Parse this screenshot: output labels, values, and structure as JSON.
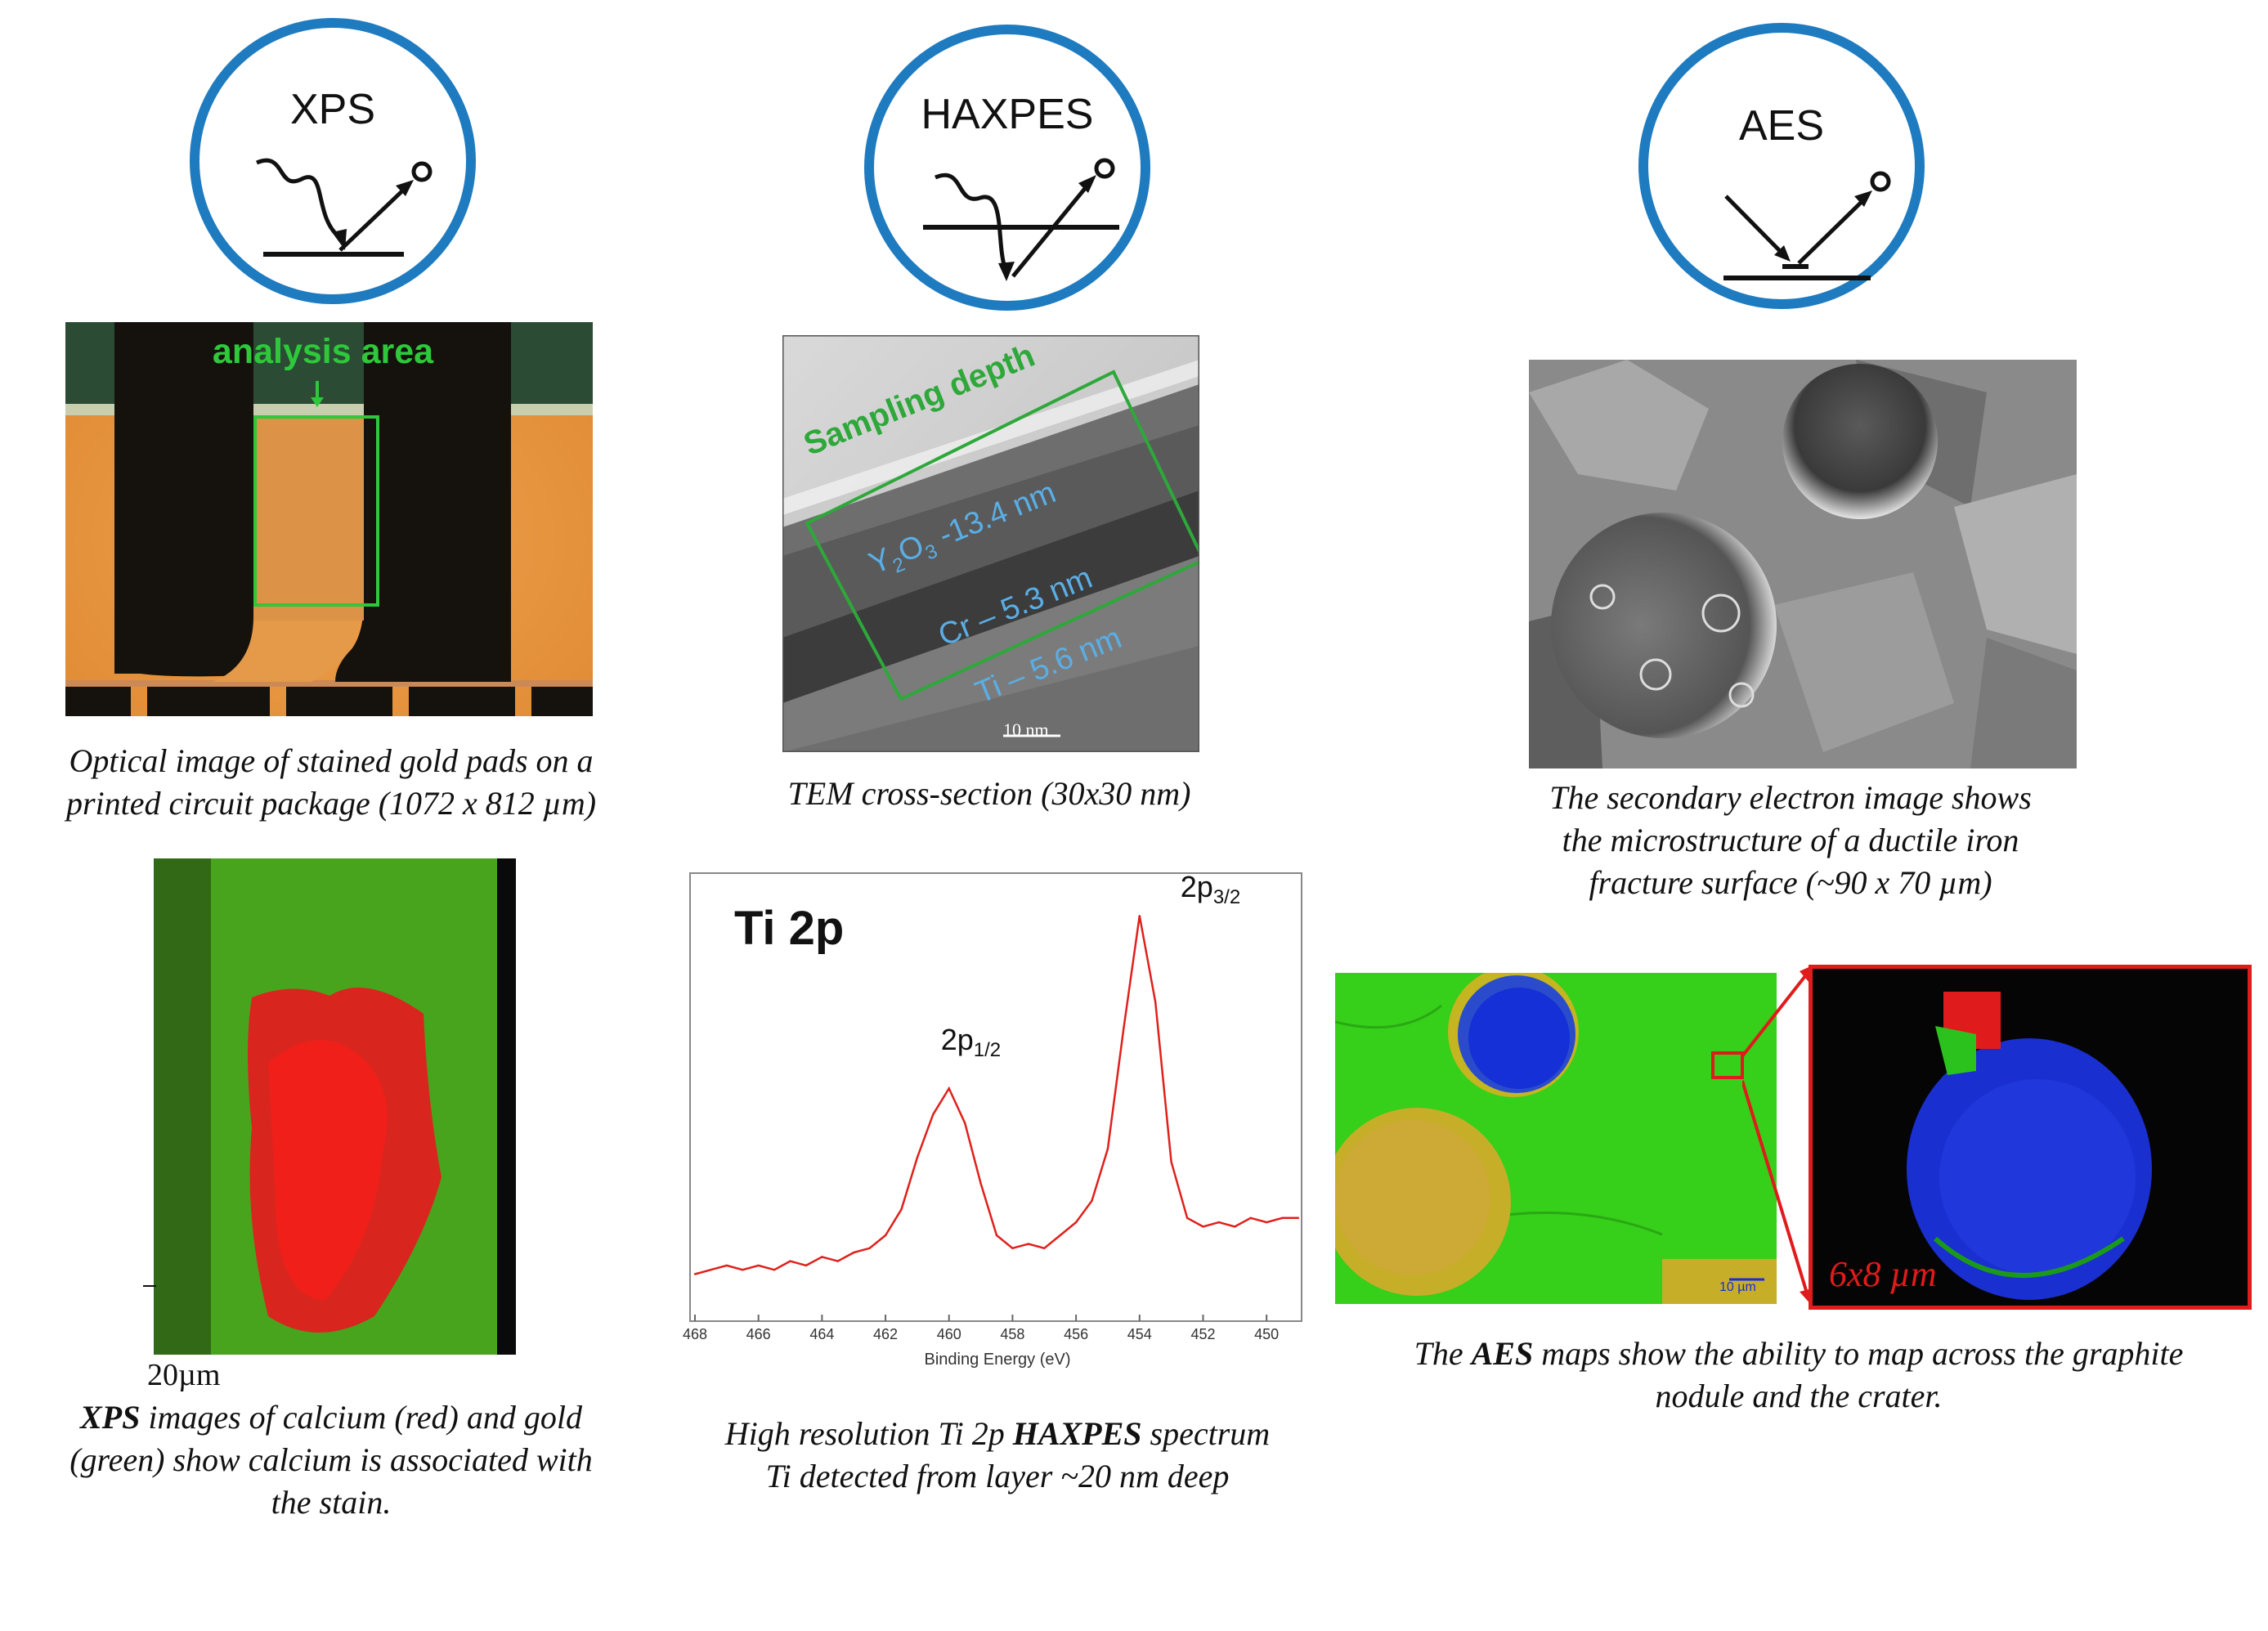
{
  "techniques": {
    "xps": {
      "label": "XPS"
    },
    "haxpes": {
      "label": "HAXPES"
    },
    "aes": {
      "label": "AES"
    }
  },
  "xps_panel": {
    "photo_label": "analysis area",
    "photo_caption_1": "Optical image of stained gold pads on a",
    "photo_caption_2": "printed circuit package (1072 x 812 µm)",
    "map_scale": "20µm",
    "map_caption_1_bold": "XPS",
    "map_caption_1_rest": " images of calcium (red) and gold",
    "map_caption_2": "(green) show calcium is associated with",
    "map_caption_3": "the stain."
  },
  "haxpes_panel": {
    "tem_label": "Sampling depth",
    "layer_1_sym": "Y",
    "layer_1_sub_a": "2",
    "layer_1_mid": "O",
    "layer_1_sub_b": "3",
    "layer_1_rest": " -13.4 nm",
    "layer_2": "Cr – 5.3 nm",
    "layer_3": "Ti – 5.6 nm",
    "tem_scale": "10 nm",
    "tem_caption": "TEM cross-section (30x30 nm)",
    "spec_caption_1_pre": "High resolution Ti 2p ",
    "spec_caption_1_bold": "HAXPES",
    "spec_caption_1_post": " spectrum",
    "spec_caption_2": "Ti detected from layer ~20 nm deep"
  },
  "aes_panel": {
    "sem_caption_1": "The secondary electron image shows",
    "sem_caption_2": "the microstructure of a ductile iron",
    "sem_caption_3": "fracture surface (~90 x 70 µm)",
    "map_scale": "10 µm",
    "zoom_label": "6x8 µm",
    "map_caption_1_pre": "The ",
    "map_caption_1_bold": "AES",
    "map_caption_1_post": " maps show the ability to map across the graphite",
    "map_caption_2": "nodule and the crater."
  },
  "chart_data": {
    "type": "line",
    "title": "Ti 2p",
    "xlabel": "Binding Energy (eV)",
    "ylabel": "",
    "x_reversed": true,
    "xlim": [
      468,
      449
    ],
    "ylim": [
      0,
      100
    ],
    "xticks": [
      468,
      466,
      464,
      462,
      460,
      458,
      456,
      454,
      452,
      450
    ],
    "annotations": [
      {
        "text_main": "2p",
        "text_sub": "1/2",
        "x": 460,
        "y": 52
      },
      {
        "text_main": "2p",
        "text_sub": "3/2",
        "x": 454,
        "y": 97
      }
    ],
    "series": [
      {
        "color": "#e0201b",
        "x": [
          468,
          467.5,
          467,
          466.5,
          466,
          465.5,
          465,
          464.5,
          464,
          463.5,
          463,
          462.5,
          462,
          461.5,
          461,
          460.5,
          460,
          459.5,
          459,
          458.5,
          458,
          457.5,
          457,
          456.5,
          456,
          455.5,
          455,
          454.5,
          454,
          453.5,
          453,
          452.5,
          452,
          451.5,
          451,
          450.5,
          450,
          449.5,
          449
        ],
        "y": [
          9,
          10,
          11,
          10,
          11,
          10,
          12,
          11,
          13,
          12,
          14,
          15,
          18,
          24,
          36,
          46,
          52,
          44,
          30,
          18,
          15,
          16,
          15,
          18,
          21,
          26,
          38,
          66,
          92,
          72,
          35,
          22,
          20,
          21,
          20,
          22,
          21,
          22,
          22
        ]
      }
    ]
  }
}
